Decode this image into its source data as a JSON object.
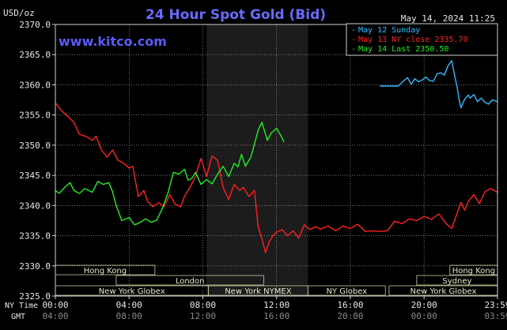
{
  "chart_data": {
    "type": "line",
    "title": "24 Hour Spot Gold (Bid)",
    "unit_label": "USD/oz",
    "site": "www.kitco.com",
    "timestamp": "May 14, 2024 11:25",
    "ylim": [
      2325,
      2370
    ],
    "y_ticks": [
      "2370.0",
      "2365.0",
      "2360.0",
      "2355.0",
      "2350.0",
      "2345.0",
      "2340.0",
      "2335.0",
      "2330.0",
      "2325.0"
    ],
    "x_row_labels": {
      "ny": "NY Time",
      "gmt": "GMT"
    },
    "x_ticks_ny": [
      "00:00",
      "04:00",
      "08:00",
      "12:00",
      "16:00",
      "20:00",
      "23:59"
    ],
    "x_ticks_gmt": [
      "04:00",
      "08:00",
      "12:00",
      "16:00",
      "20:00",
      "00:00",
      "03:59"
    ],
    "legend": [
      {
        "label": "May 12 Sunday",
        "color": "#33bbff"
      },
      {
        "label": "May 13 NY close 2335.70",
        "color": "#ff2020"
      },
      {
        "label": "May 14 Last 2350.50",
        "color": "#22ee22"
      }
    ],
    "sessions_left": [
      {
        "label": "Hong Kong",
        "start": 0.0,
        "end": 5.4
      },
      {
        "label": "London",
        "start": 3.3,
        "end": 11.3
      },
      {
        "label": "New York Globex",
        "start": 0.0,
        "end": 8.3
      },
      {
        "label": "New York NYMEX",
        "start": 8.3,
        "end": 13.7
      },
      {
        "label": "NY Globex",
        "start": 13.7,
        "end": 17.9
      }
    ],
    "sessions_right": [
      {
        "label": "Hong Kong",
        "start": 21.4,
        "end": 23.983
      },
      {
        "label": "Sydney",
        "start": 19.6,
        "end": 23.983
      },
      {
        "label": "New York Globex",
        "start": 18.1,
        "end": 23.983
      }
    ],
    "series": [
      {
        "name": "May 12 Sunday",
        "color": "#33bbff",
        "x": [
          17.6,
          18.6,
          18.8,
          19.1,
          19.3,
          19.5,
          19.7,
          19.9,
          20.1,
          20.3,
          20.5,
          20.7,
          20.9,
          21.1,
          21.3,
          21.5,
          21.6,
          21.8,
          21.9,
          22.0,
          22.2,
          22.4,
          22.5,
          22.7,
          22.9,
          23.1,
          23.3,
          23.5,
          23.7,
          23.983
        ],
        "y": [
          2359.8,
          2359.8,
          2360.4,
          2361.2,
          2360.1,
          2361.0,
          2360.5,
          2360.8,
          2361.3,
          2360.7,
          2360.6,
          2361.8,
          2362.0,
          2361.6,
          2363.2,
          2364.0,
          2362.4,
          2359.5,
          2357.6,
          2356.2,
          2357.6,
          2358.3,
          2357.8,
          2358.4,
          2357.2,
          2357.8,
          2357.1,
          2356.8,
          2357.5,
          2357.2
        ]
      },
      {
        "name": "May 13 NY close 2335.70",
        "color": "#ff2020",
        "x": [
          0.0,
          0.3,
          0.6,
          1.0,
          1.3,
          1.7,
          2.0,
          2.2,
          2.5,
          2.8,
          3.1,
          3.4,
          3.7,
          4.0,
          4.2,
          4.5,
          4.8,
          5.0,
          5.3,
          5.6,
          5.9,
          6.2,
          6.5,
          6.8,
          7.0,
          7.3,
          7.6,
          7.9,
          8.2,
          8.5,
          8.8,
          9.1,
          9.4,
          9.7,
          10.0,
          10.2,
          10.5,
          10.8,
          11.0,
          11.2,
          11.4,
          11.6,
          11.8,
          12.0,
          12.3,
          12.6,
          12.9,
          13.2,
          13.5,
          13.8,
          14.1,
          14.4,
          14.8,
          15.2,
          15.6,
          16.0,
          16.4,
          16.8,
          17.2,
          17.6,
          18.0,
          18.4,
          18.8,
          19.2,
          19.6,
          20.0,
          20.4,
          20.8,
          21.2,
          21.5,
          21.8,
          22.0,
          22.2,
          22.4,
          22.7,
          23.0,
          23.3,
          23.6,
          23.983
        ],
        "y": [
          2357.0,
          2355.8,
          2355.0,
          2353.8,
          2351.8,
          2351.4,
          2350.8,
          2351.5,
          2349.2,
          2348.0,
          2349.2,
          2347.5,
          2347.0,
          2346.2,
          2346.5,
          2341.5,
          2342.5,
          2340.7,
          2339.8,
          2340.5,
          2339.8,
          2341.8,
          2340.2,
          2339.8,
          2341.5,
          2343.0,
          2344.8,
          2347.8,
          2344.8,
          2348.2,
          2347.5,
          2343.0,
          2341.0,
          2343.5,
          2342.5,
          2343.0,
          2341.5,
          2342.5,
          2336.5,
          2334.5,
          2332.2,
          2334.0,
          2335.0,
          2335.6,
          2336.0,
          2335.0,
          2335.8,
          2334.6,
          2336.8,
          2336.0,
          2336.5,
          2336.1,
          2336.6,
          2335.8,
          2336.6,
          2336.2,
          2336.9,
          2335.7,
          2335.8,
          2335.7,
          2335.8,
          2337.4,
          2337.0,
          2337.8,
          2337.5,
          2338.2,
          2337.7,
          2338.6,
          2337.0,
          2336.2,
          2338.8,
          2340.5,
          2339.2,
          2340.7,
          2341.8,
          2340.3,
          2342.3,
          2342.8,
          2342.2
        ]
      },
      {
        "name": "May 14 Last 2350.50",
        "color": "#22ee22",
        "x": [
          0.0,
          0.2,
          0.5,
          0.8,
          1.0,
          1.3,
          1.6,
          2.0,
          2.3,
          2.6,
          2.9,
          3.1,
          3.3,
          3.6,
          4.0,
          4.3,
          4.6,
          4.9,
          5.2,
          5.5,
          5.8,
          6.1,
          6.4,
          6.7,
          7.0,
          7.2,
          7.4,
          7.6,
          7.9,
          8.2,
          8.5,
          8.8,
          9.1,
          9.4,
          9.7,
          9.9,
          10.1,
          10.3,
          10.6,
          10.8,
          11.0,
          11.2,
          11.5,
          11.7,
          12.0,
          12.3,
          12.4
        ],
        "y": [
          2342.5,
          2342.0,
          2343.0,
          2343.8,
          2342.5,
          2342.0,
          2342.8,
          2342.2,
          2344.0,
          2343.5,
          2343.8,
          2342.3,
          2340.0,
          2337.5,
          2338.0,
          2336.8,
          2337.2,
          2337.8,
          2337.2,
          2337.6,
          2339.5,
          2342.0,
          2345.5,
          2345.2,
          2346.0,
          2344.2,
          2344.5,
          2345.5,
          2343.5,
          2344.3,
          2343.6,
          2345.2,
          2346.5,
          2344.8,
          2347.0,
          2346.4,
          2348.5,
          2346.5,
          2348.0,
          2350.2,
          2352.5,
          2353.8,
          2350.8,
          2352.0,
          2352.8,
          2351.2,
          2350.5
        ]
      }
    ]
  }
}
